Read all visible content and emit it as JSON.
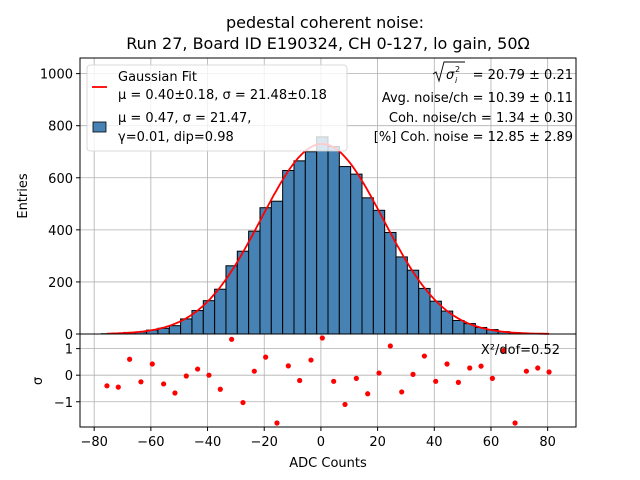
{
  "chart_data": [
    {
      "type": "bar",
      "title_line1": "pedestal coherent noise:",
      "title_line2": "Run 27, Board ID E190324, CH 0-127, lo gain, 50Ω",
      "xlabel": "",
      "ylabel": "Entries",
      "xlim": [
        -85,
        90
      ],
      "ylim": [
        0,
        1060
      ],
      "yticks": [
        0,
        200,
        400,
        600,
        800,
        1000
      ],
      "bin_width": 4,
      "bin_edges_start": -77.5,
      "values": [
        1,
        3,
        6,
        8,
        15,
        22,
        32,
        58,
        90,
        128,
        172,
        262,
        318,
        395,
        485,
        510,
        628,
        665,
        700,
        757,
        720,
        643,
        614,
        523,
        475,
        390,
        296,
        245,
        175,
        126,
        88,
        52,
        40,
        25,
        17,
        9,
        5,
        2,
        1,
        0
      ],
      "bar_color": "#4682b4",
      "fit": {
        "type": "gaussian",
        "mu": 0.4,
        "sigma": 21.48,
        "amplitude": 730,
        "x_range": [
          -75.5,
          80.5
        ],
        "color": "#ff0000"
      },
      "legend": {
        "placement": "upper-left",
        "entries": [
          {
            "line1": "Gaussian Fit",
            "line2": "μ = 0.40±0.18, σ = 21.48±0.18",
            "marker": "red-line"
          },
          {
            "line1": "μ = 0.47, σ = 21.47,",
            "line2": "γ=0.01, dip=0.98",
            "marker": "blue-box"
          }
        ]
      },
      "annotations": [
        {
          "prefix": "√σᵢ²",
          "text": " = 20.79 ± 0.21"
        },
        {
          "text": "Avg. noise/ch = 10.39 ± 0.11"
        },
        {
          "text": "Coh. noise/ch = 1.34 ± 0.30"
        },
        {
          "text": "[%] Coh. noise = 12.85  ± 2.89"
        }
      ]
    },
    {
      "type": "scatter",
      "xlabel": "ADC Counts",
      "ylabel": "σ",
      "xlim": [
        -85,
        90
      ],
      "ylim": [
        -1.95,
        1.55
      ],
      "yticks": [
        -1,
        0,
        1
      ],
      "ytick_labels": [
        "−1",
        "0",
        "1"
      ],
      "xticks": [
        -80,
        -60,
        -40,
        -20,
        0,
        20,
        40,
        60,
        80
      ],
      "xtick_labels": [
        "−80",
        "−60",
        "−40",
        "−20",
        "0",
        "20",
        "40",
        "60",
        "80"
      ],
      "point_color": "#ff0000",
      "x": [
        -75.5,
        -71.5,
        -67.5,
        -63.5,
        -59.5,
        -55.5,
        -51.5,
        -47.5,
        -43.5,
        -39.5,
        -35.5,
        -31.5,
        -27.5,
        -23.5,
        -19.5,
        -15.5,
        -11.5,
        -7.5,
        -3.5,
        0.5,
        4.5,
        8.5,
        12.5,
        16.5,
        20.5,
        24.5,
        28.5,
        32.5,
        36.5,
        40.5,
        44.5,
        48.5,
        52.5,
        56.5,
        60.5,
        64.5,
        68.5,
        72.5,
        76.5,
        80.5
      ],
      "y": [
        -0.4,
        -0.45,
        0.6,
        -0.25,
        0.42,
        -0.33,
        -0.67,
        -0.03,
        0.23,
        0.0,
        -0.53,
        1.35,
        -1.03,
        0.15,
        0.68,
        -1.8,
        0.35,
        -0.2,
        0.57,
        1.4,
        -0.23,
        -1.1,
        -0.12,
        -0.7,
        0.08,
        1.1,
        -0.63,
        0.03,
        0.72,
        -0.23,
        0.42,
        -0.27,
        0.27,
        0.34,
        -0.12,
        0.93,
        -1.8,
        0.15,
        0.27,
        0.12
      ],
      "annotation": "X²/dof=0.52"
    }
  ]
}
